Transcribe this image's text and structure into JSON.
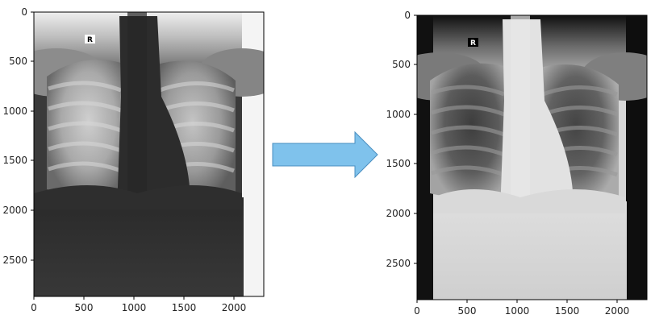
{
  "left_panel": {
    "marker_label": "R",
    "y_ticks": [
      "0",
      "500",
      "1000",
      "1500",
      "2000",
      "2500"
    ],
    "x_ticks": [
      "0",
      "500",
      "1000",
      "1500",
      "2000"
    ]
  },
  "right_panel": {
    "marker_label": "R",
    "y_ticks": [
      "0",
      "500",
      "1000",
      "1500",
      "2000",
      "2500"
    ],
    "x_ticks": [
      "0",
      "500",
      "1000",
      "1500",
      "2000"
    ]
  },
  "arrow": {
    "fill": "#7fc2ec",
    "stroke": "#4a8fc0"
  }
}
